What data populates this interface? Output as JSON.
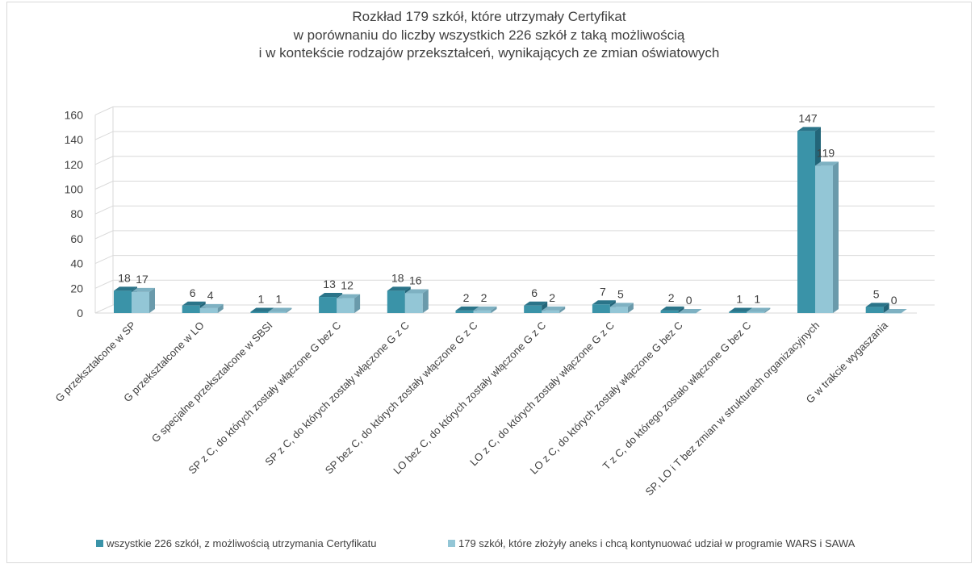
{
  "chart_data": {
    "type": "bar",
    "title": [
      "Rozkład 179 szkół, które utrzymały Certyfikat",
      "w porównaniu do liczby wszystkich 226 szkół z taką możliwością",
      "i w kontekście rodzajów przekształceń, wynikających ze zmian oświatowych"
    ],
    "xlabel": "",
    "ylabel": "",
    "ylim": [
      0,
      160
    ],
    "yticks": [
      0,
      20,
      40,
      60,
      80,
      100,
      120,
      140,
      160
    ],
    "grid": true,
    "style": "3d-clustered",
    "legend_position": "bottom",
    "categories": [
      "G przekształcone w SP",
      "G przekształcone w LO",
      "G specjalne przekształcone w SBSI",
      "SP z C, do których zostały włączone G bez C",
      "SP z C, do których zostały włączone G z C",
      "SP bez C, do których zostały włączone G z C",
      "LO bez C, do których zostały włączone G z C",
      "LO z C, do których zostały włączone G z C",
      "LO z C, do których zostały włączone G bez C",
      "T z C, do którego zostało włączone G bez C",
      "SP, LO i T bez zmian w strukturach organizacyjnych",
      "G w trakcie wygaszania"
    ],
    "series": [
      {
        "name": "wszystkie 226 szkół, z możliwością utrzymania Certyfikatu",
        "color": "#3a93a8",
        "values": [
          18,
          6,
          1,
          13,
          18,
          2,
          6,
          7,
          2,
          1,
          147,
          5
        ]
      },
      {
        "name": "179 szkół, które złożyły aneks i chcą kontynuować udział w programie WARS i SAWA",
        "color": "#93c6d6",
        "values": [
          17,
          4,
          1,
          12,
          16,
          2,
          2,
          5,
          0,
          1,
          119,
          0
        ]
      }
    ]
  },
  "colors": {
    "series1_front": "#3a93a8",
    "series1_top": "#2a7489",
    "series1_side": "#236579",
    "series2_front": "#93c6d6",
    "series2_top": "#7eb1c2",
    "series2_side": "#6a9aab",
    "grid": "#d9d9d9",
    "text": "#404040"
  }
}
